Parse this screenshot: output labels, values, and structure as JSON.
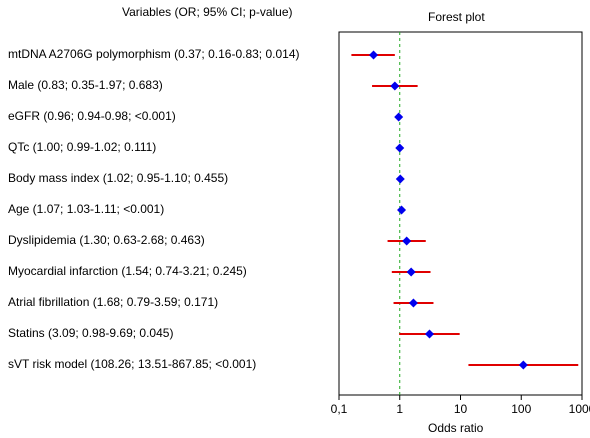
{
  "header": {
    "variables_label": "Variables (OR; 95% CI; p-value)",
    "plot_title": "Forest plot"
  },
  "rows": [
    {
      "label": "mtDNA A2706G polymorphism (0.37; 0.16-0.83; 0.014)"
    },
    {
      "label": "Male (0.83; 0.35-1.97; 0.683)"
    },
    {
      "label": "eGFR (0.96; 0.94-0.98; <0.001)"
    },
    {
      "label": "QTc (1.00; 0.99-1.02; 0.111)"
    },
    {
      "label": "Body mass index (1.02; 0.95-1.10; 0.455)"
    },
    {
      "label": "Age (1.07; 1.03-1.11; <0.001)"
    },
    {
      "label": "Dyslipidemia (1.30; 0.63-2.68; 0.463)"
    },
    {
      "label": "Myocardial infarction (1.54; 0.74-3.21; 0.245)"
    },
    {
      "label": "Atrial fibrillation (1.68; 0.79-3.59; 0.171)"
    },
    {
      "label": "Statins (3.09; 0.98-9.69; 0.045)"
    },
    {
      "label": "sVT risk model (108.26; 13.51-867.85; <0.001)"
    }
  ],
  "chart_data": {
    "type": "forest",
    "title": "Forest plot",
    "xlabel": "Odds ratio",
    "x_scale": "log",
    "xlim": [
      0.1,
      1000
    ],
    "reference_line": 1,
    "x_ticks": [
      {
        "value": 0.1,
        "label": "0,1"
      },
      {
        "value": 1,
        "label": "1"
      },
      {
        "value": 10,
        "label": "10"
      },
      {
        "value": 100,
        "label": "100"
      },
      {
        "value": 1000,
        "label": "1000"
      }
    ],
    "points": [
      {
        "or": 0.37,
        "lo": 0.16,
        "hi": 0.83
      },
      {
        "or": 0.83,
        "lo": 0.35,
        "hi": 1.97
      },
      {
        "or": 0.96,
        "lo": 0.94,
        "hi": 0.98
      },
      {
        "or": 1.0,
        "lo": 0.99,
        "hi": 1.02
      },
      {
        "or": 1.02,
        "lo": 0.95,
        "hi": 1.1
      },
      {
        "or": 1.07,
        "lo": 1.03,
        "hi": 1.11
      },
      {
        "or": 1.3,
        "lo": 0.63,
        "hi": 2.68
      },
      {
        "or": 1.54,
        "lo": 0.74,
        "hi": 3.21
      },
      {
        "or": 1.68,
        "lo": 0.79,
        "hi": 3.59
      },
      {
        "or": 3.09,
        "lo": 0.98,
        "hi": 9.69
      },
      {
        "or": 108.26,
        "lo": 13.51,
        "hi": 867.85
      }
    ],
    "colors": {
      "ci_line": "#e00000",
      "marker": "#0000ee",
      "reference_line": "#22aa22",
      "frame": "#000000"
    }
  }
}
